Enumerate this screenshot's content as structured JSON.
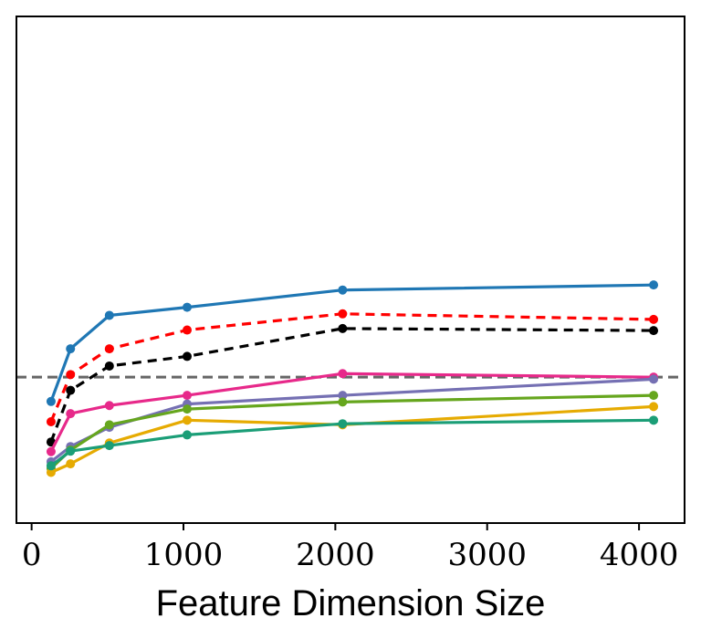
{
  "chart_data": {
    "type": "line",
    "title": "",
    "xlabel": "Feature Dimension Size",
    "ylabel": "",
    "xlim": [
      -100,
      4300
    ],
    "ylim": [
      0,
      1
    ],
    "xticks": [
      0,
      1000,
      2000,
      3000,
      4000
    ],
    "xtick_labels": [
      "0",
      "1000",
      "2000",
      "3000",
      "4000"
    ],
    "show_yticks": false,
    "grid": false,
    "legend": "none",
    "x": [
      128,
      256,
      512,
      1024,
      2048,
      4096
    ],
    "reference_line": {
      "value": 0.288,
      "color": "#666666",
      "style": "dashed"
    },
    "series": [
      {
        "name": "blue",
        "color": "#1f77b4",
        "style": "solid",
        "values": [
          0.24,
          0.344,
          0.41,
          0.426,
          0.46,
          0.47
        ]
      },
      {
        "name": "red",
        "color": "#ff0000",
        "style": "dashed",
        "values": [
          0.2,
          0.293,
          0.344,
          0.381,
          0.413,
          0.402
        ]
      },
      {
        "name": "black",
        "color": "#000000",
        "style": "dashed",
        "values": [
          0.16,
          0.262,
          0.31,
          0.329,
          0.384,
          0.38
        ]
      },
      {
        "name": "pink",
        "color": "#e7298a",
        "style": "solid",
        "values": [
          0.141,
          0.216,
          0.232,
          0.252,
          0.295,
          0.288
        ]
      },
      {
        "name": "purple",
        "color": "#7570b3",
        "style": "solid",
        "values": [
          0.121,
          0.151,
          0.189,
          0.235,
          0.252,
          0.284
        ]
      },
      {
        "name": "green",
        "color": "#66a61e",
        "style": "solid",
        "values": [
          0.108,
          0.144,
          0.194,
          0.225,
          0.239,
          0.252
        ]
      },
      {
        "name": "orange",
        "color": "#e6ab02",
        "style": "solid",
        "values": [
          0.1,
          0.117,
          0.158,
          0.203,
          0.194,
          0.23
        ]
      },
      {
        "name": "teal",
        "color": "#1b9e77",
        "style": "solid",
        "values": [
          0.113,
          0.142,
          0.153,
          0.174,
          0.196,
          0.203
        ]
      }
    ]
  }
}
